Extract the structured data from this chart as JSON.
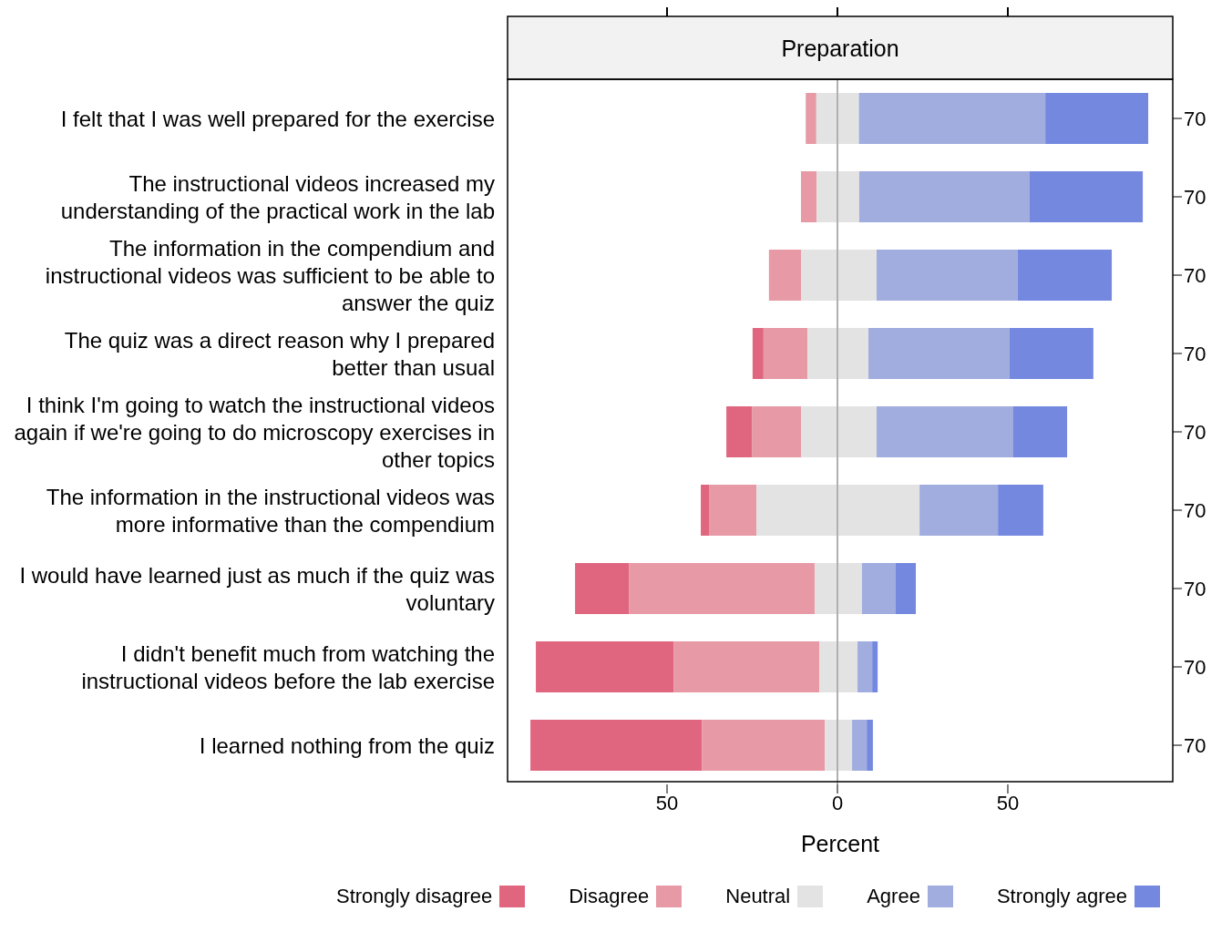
{
  "chart_data": {
    "type": "bar",
    "orientation": "horizontal",
    "title": "Preparation",
    "xlabel": "Percent",
    "categories": [
      "I felt that I was well prepared for the exercise",
      "The instructional videos increased my understanding of the practical work in the lab",
      "The information in the compendium and instructional videos was sufficient to be able to answer the quiz",
      "The quiz was a direct reason why I prepared better than usual",
      "I think I'm going to watch the instructional videos again if we're going to do microscopy exercises in other topics",
      "The information in the instructional videos was more informative than the compendium",
      "I would have learned just as much if the quiz was voluntary",
      "I didn't benefit much from watching the instructional videos before the lab exercise",
      "I learned nothing from the quiz"
    ],
    "y2_categories": [
      "70",
      "70",
      "70",
      "70",
      "70",
      "70",
      "70",
      "70",
      "70"
    ],
    "series": [
      {
        "name": "Strongly disagree",
        "color": "#e06680",
        "values": [
          null,
          null,
          null,
          3.2,
          7.5,
          2.4,
          15.8,
          40.4,
          50.3
        ],
        "base": [
          null,
          null,
          null,
          -24.9,
          -32.6,
          -40.1,
          -77.0,
          -88.5,
          -90.1
        ]
      },
      {
        "name": "Disagree",
        "color": "#e799a6",
        "values": [
          3.1,
          4.6,
          9.4,
          12.9,
          14.4,
          13.9,
          54.5,
          42.8,
          36.1
        ],
        "base": [
          -9.3,
          -10.7,
          -20.1,
          -21.7,
          -25.1,
          -37.7,
          -61.2,
          -48.1,
          -39.8
        ]
      },
      {
        "name": "Neutral",
        "color": "#e3e3e3",
        "values": [
          12.5,
          12.5,
          22.2,
          17.9,
          22.2,
          47.9,
          13.9,
          11.2,
          8.0
        ],
        "base": [
          -6.2,
          -6.1,
          -10.7,
          -8.8,
          -10.7,
          -23.8,
          -6.7,
          -5.3,
          -3.7
        ]
      },
      {
        "name": "Agree",
        "color": "#a1acdf",
        "values": [
          54.7,
          50.0,
          41.4,
          41.4,
          40.1,
          23.0,
          9.9,
          4.3,
          4.3
        ],
        "base": [
          6.3,
          6.4,
          11.5,
          9.1,
          11.5,
          24.1,
          7.2,
          5.9,
          4.3
        ]
      },
      {
        "name": "Strongly agree",
        "color": "#7488e0",
        "values": [
          30.2,
          33.2,
          27.6,
          24.6,
          15.8,
          13.3,
          5.9,
          1.6,
          1.8
        ],
        "base": [
          61.0,
          56.4,
          52.9,
          50.5,
          51.6,
          47.1,
          17.1,
          10.2,
          8.6
        ]
      }
    ],
    "xlim": [
      -96.8,
      98.4
    ],
    "xticks": [
      {
        "value": -50,
        "label": "50"
      },
      0,
      50
    ],
    "ref_lines": [
      {
        "axis": "x",
        "value": 0,
        "color": "#b0b0b0"
      }
    ],
    "legend": "bottom",
    "grid": false
  }
}
